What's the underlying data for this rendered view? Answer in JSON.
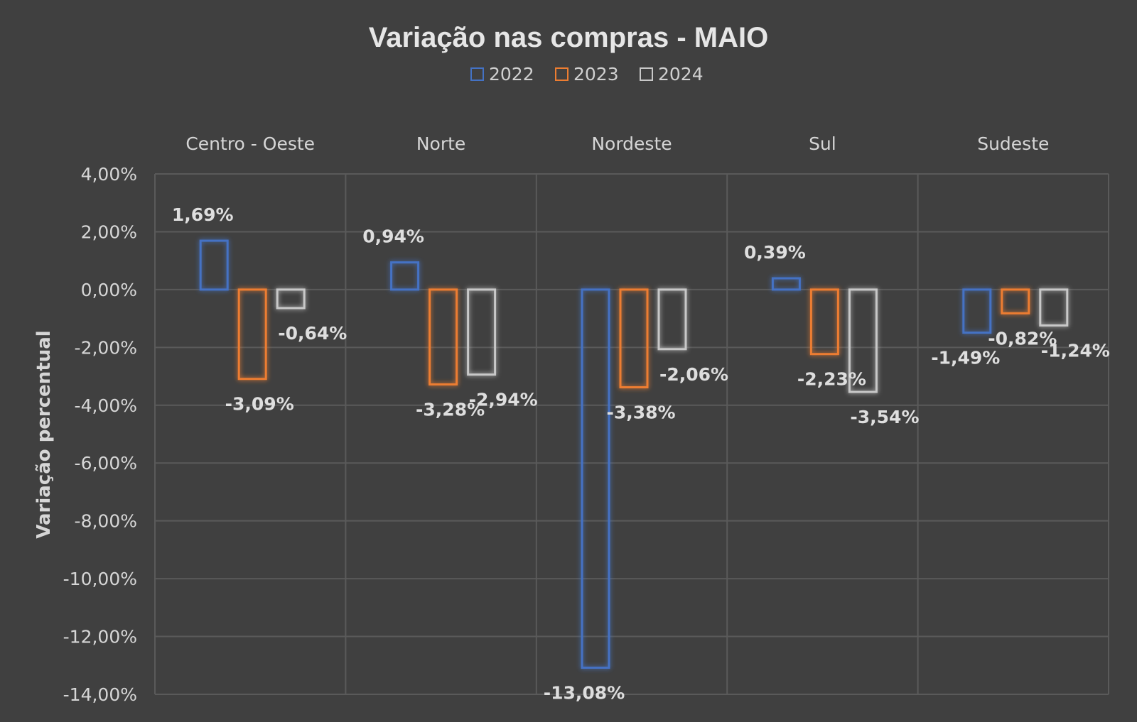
{
  "chart_data": {
    "type": "bar",
    "title": "Variação nas compras - MAIO",
    "xlabel": "",
    "ylabel": "Variação percentual",
    "categories": [
      "Centro - Oeste",
      "Norte",
      "Nordeste",
      "Sul",
      "Sudeste"
    ],
    "category_axis_position": "top",
    "ylim": [
      -14,
      4
    ],
    "yticks": [
      4,
      2,
      0,
      -2,
      -4,
      -6,
      -8,
      -10,
      -12,
      -14
    ],
    "ytick_labels": [
      "4,00%",
      "2,00%",
      "0,00%",
      "-2,00%",
      "-4,00%",
      "-6,00%",
      "-8,00%",
      "-10,00%",
      "-12,00%",
      "-14,00%"
    ],
    "grid": true,
    "legend_position": "top",
    "bar_style": "outlined",
    "series": [
      {
        "name": "2022",
        "color": "#4472c4",
        "values": [
          1.69,
          0.94,
          -13.08,
          0.39,
          -1.49
        ],
        "labels": [
          "1,69%",
          "0,94%",
          "-13,08%",
          "0,39%",
          "-1,49%"
        ]
      },
      {
        "name": "2023",
        "color": "#ed7d31",
        "values": [
          -3.09,
          -3.28,
          -3.38,
          -2.23,
          -0.82
        ],
        "labels": [
          "-3,09%",
          "-3,28%",
          "-3,38%",
          "-2,23%",
          "-0,82%"
        ]
      },
      {
        "name": "2024",
        "color": "#c8c8c8",
        "values": [
          -0.64,
          -2.94,
          -2.06,
          -3.54,
          -1.24
        ],
        "labels": [
          "-0,64%",
          "-2,94%",
          "-2,06%",
          "-3,54%",
          "-1,24%"
        ]
      }
    ]
  }
}
